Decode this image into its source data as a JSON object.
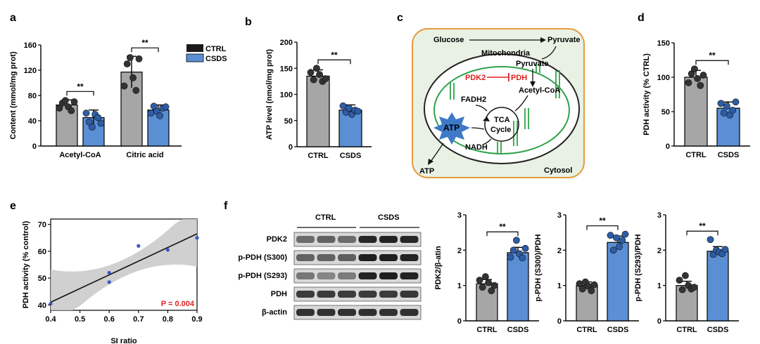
{
  "colors": {
    "ctrl": "#a6a6a6",
    "csds": "#5b8fd4",
    "dot_ctrl": "#333333",
    "dot_csds": "#2e5da6",
    "red": "#e0211f",
    "mito": "#2ea34a",
    "cell_fill": "#e9f1e4",
    "cell_border": "#e59b3c",
    "star": "#3e78c8",
    "band": "#141414",
    "band_bg": "#d8d8d8",
    "ci_band": "#c8c8c8",
    "scatter_dot": "#3b57c4"
  },
  "panels": {
    "a": {
      "letter": "a",
      "ylabel": "Content (mmol/mg prot)",
      "legend": [
        "CTRL",
        "CSDS"
      ],
      "sig": [
        "**",
        "**"
      ],
      "chart_data": {
        "type": "bar",
        "categories": [
          "Acetyl-CoA",
          "Citric acid"
        ],
        "ylim": [
          0,
          160
        ],
        "yticks": [
          0,
          40,
          80,
          120,
          160
        ],
        "legend_position": "top-right",
        "series": [
          {
            "name": "CTRL",
            "values": [
              65,
              117
            ],
            "err": [
              8,
              25
            ],
            "points": [
              [
                60,
                68,
                72,
                62,
                56,
                70
              ],
              [
                95,
                130,
                140,
                108,
                88,
                138
              ]
            ]
          },
          {
            "name": "CSDS",
            "values": [
              45,
              57
            ],
            "err": [
              12,
              8
            ],
            "points": [
              [
                52,
                38,
                30,
                50,
                45,
                36
              ],
              [
                52,
                63,
                55,
                48,
                60,
                62
              ]
            ]
          }
        ]
      }
    },
    "b": {
      "letter": "b",
      "ylabel": "ATP level (nmol/mg prot)",
      "sig": "**",
      "chart_data": {
        "type": "bar",
        "categories": [
          "CTRL",
          "CSDS"
        ],
        "ylim": [
          0,
          200
        ],
        "yticks": [
          0,
          50,
          100,
          150,
          200
        ],
        "values": [
          135,
          70
        ],
        "err": [
          12,
          10
        ],
        "points": [
          [
            142,
            128,
            150,
            138,
            125,
            130
          ],
          [
            78,
            66,
            74,
            62,
            70,
            68
          ]
        ]
      }
    },
    "c": {
      "letter": "c",
      "labels": {
        "glucose": "Glucose",
        "pyruvate_out": "Pyruvate",
        "mitochondria": "Mitochondria",
        "pyruvate_in": "Pyruvate",
        "pdk2": "PDK2",
        "pdh": "PDH",
        "acetyl": "Acetyl-CoA",
        "fadh2": "FADH2",
        "tca1": "TCA",
        "tca2": "Cycle",
        "atp_star": "ATP",
        "nadh": "NADH",
        "atp_out": "ATP",
        "cytosol": "Cytosol"
      }
    },
    "d": {
      "letter": "d",
      "ylabel": "PDH activity (% CTRL)",
      "sig": "**",
      "chart_data": {
        "type": "bar",
        "categories": [
          "CTRL",
          "CSDS"
        ],
        "ylim": [
          0,
          150
        ],
        "yticks": [
          0,
          50,
          100,
          150
        ],
        "values": [
          100,
          55
        ],
        "err": [
          10,
          9
        ],
        "points": [
          [
            92,
            105,
            112,
            98,
            88,
            103
          ],
          [
            62,
            48,
            58,
            45,
            52,
            64
          ]
        ]
      }
    },
    "e": {
      "letter": "e",
      "ylabel": "PDH activity (% control)",
      "xlabel": "SI ratio",
      "pvalue": "P = 0.004",
      "chart_data": {
        "type": "scatter",
        "xlim": [
          0.4,
          0.9
        ],
        "ylim": [
          38,
          72
        ],
        "xticks": [
          0.4,
          0.5,
          0.6,
          0.7,
          0.8,
          0.9
        ],
        "yticks": [
          40,
          50,
          60,
          70
        ],
        "x": [
          0.4,
          0.6,
          0.6,
          0.7,
          0.8,
          0.9
        ],
        "y": [
          40.5,
          52,
          48.5,
          62,
          60.5,
          65
        ],
        "fit": {
          "x": [
            0.4,
            0.9
          ],
          "y": [
            41,
            66.5
          ]
        }
      }
    },
    "f": {
      "letter": "f",
      "groups": [
        "CTRL",
        "CSDS"
      ],
      "blots": [
        "PDK2",
        "p-PDH (S300)",
        "p-PDH (S293)",
        "PDH",
        "β-actin"
      ],
      "charts": [
        {
          "ylabel": "PDK2/β-atin",
          "sig": "**",
          "chart_data": {
            "type": "bar",
            "categories": [
              "CTRL",
              "CSDS"
            ],
            "ylim": [
              0,
              3
            ],
            "yticks": [
              0,
              1,
              2,
              3
            ],
            "values": [
              1.05,
              1.93
            ],
            "err": [
              0.12,
              0.15
            ],
            "points": [
              [
                1.15,
                0.95,
                1.25,
                1.08,
                0.85,
                1.0
              ],
              [
                1.8,
                2.0,
                2.28,
                1.9,
                1.78,
                2.05
              ]
            ]
          }
        },
        {
          "ylabel": "p-PDH (S300)/PDH",
          "sig": "**",
          "chart_data": {
            "type": "bar",
            "categories": [
              "CTRL",
              "CSDS"
            ],
            "ylim": [
              0,
              3
            ],
            "yticks": [
              0,
              1,
              2,
              3
            ],
            "values": [
              1.0,
              2.22
            ],
            "err": [
              0.1,
              0.18
            ],
            "points": [
              [
                1.05,
                0.9,
                1.1,
                0.98,
                0.85,
                1.02
              ],
              [
                2.42,
                2.0,
                2.35,
                2.1,
                2.28,
                2.45
              ]
            ]
          }
        },
        {
          "ylabel": "p-PDH (S293)/PDH",
          "sig": "**",
          "chart_data": {
            "type": "bar",
            "categories": [
              "CTRL",
              "CSDS"
            ],
            "ylim": [
              0,
              3
            ],
            "yticks": [
              0,
              1,
              2,
              3
            ],
            "values": [
              1.0,
              1.97
            ],
            "err": [
              0.12,
              0.13
            ],
            "points": [
              [
                1.15,
                0.88,
                1.28,
                1.0,
                0.9,
                0.95
              ],
              [
                2.3,
                1.88,
                2.0,
                1.95,
                1.9,
                2.02
              ]
            ]
          }
        }
      ]
    }
  }
}
